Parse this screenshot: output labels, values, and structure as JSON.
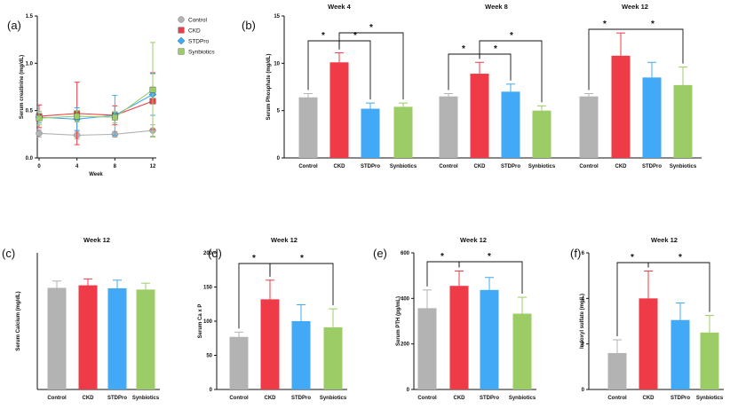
{
  "chart_data": [
    {
      "id": "a",
      "type": "line",
      "panel_label": "(a)",
      "title": "",
      "xlabel": "Week",
      "ylabel": "Serum creatinine (mg/dL)",
      "x": [
        0,
        4,
        8,
        12
      ],
      "xticks": [
        "0",
        "4",
        "8",
        "12"
      ],
      "ylim": [
        0.0,
        1.5
      ],
      "yticks": [
        "0.0",
        "0.5",
        "1.0",
        "1.5"
      ],
      "legend": [
        "Control",
        "CKD",
        "STDPro",
        "Synbiotics"
      ],
      "series": [
        {
          "name": "Control",
          "values": [
            0.26,
            0.24,
            0.25,
            0.29
          ],
          "err": [
            0.04,
            0.04,
            0.03,
            0.06
          ],
          "color": "#b3b3b3",
          "marker": "circle"
        },
        {
          "name": "CKD",
          "values": [
            0.44,
            0.47,
            0.45,
            0.6
          ],
          "err": [
            0.12,
            0.33,
            0.1,
            0.3
          ],
          "color": "#ee3b47",
          "marker": "square"
        },
        {
          "name": "STDPro",
          "values": [
            0.43,
            0.41,
            0.45,
            0.67
          ],
          "err": [
            0.06,
            0.12,
            0.21,
            0.22
          ],
          "color": "#41a9f5",
          "marker": "diamond"
        },
        {
          "name": "Synbiotics",
          "values": [
            0.42,
            0.44,
            0.43,
            0.72
          ],
          "err": [
            0.07,
            0.06,
            0.06,
            0.5
          ],
          "color": "#9ccc65",
          "marker": "square"
        }
      ]
    },
    {
      "id": "b",
      "type": "bar",
      "panel_label": "(b)",
      "ylabel": "Serum Phosphate (mg/dL)",
      "ylim": [
        0,
        15
      ],
      "yticks": [
        "0",
        "5",
        "10",
        "15"
      ],
      "groups": [
        {
          "title": "Week 4",
          "categories": [
            "Control",
            "CKD",
            "STDPro",
            "Synbiotics"
          ],
          "values": [
            6.4,
            10.1,
            5.2,
            5.4
          ],
          "err": [
            0.4,
            1.0,
            0.6,
            0.4
          ],
          "sig": [
            {
              "from": 0,
              "to": 1,
              "label": "*"
            },
            {
              "from": 1,
              "to": 2,
              "label": "*"
            },
            {
              "from": 1,
              "to": 3,
              "label": "*"
            }
          ]
        },
        {
          "title": "Week 8",
          "categories": [
            "Control",
            "CKD",
            "STDPro",
            "Synbiotics"
          ],
          "values": [
            6.5,
            8.9,
            7.0,
            5.0
          ],
          "err": [
            0.3,
            1.2,
            0.8,
            0.5
          ],
          "sig": [
            {
              "from": 0,
              "to": 1,
              "label": "*"
            },
            {
              "from": 1,
              "to": 2,
              "label": "*"
            },
            {
              "from": 1,
              "to": 3,
              "label": "*"
            }
          ]
        },
        {
          "title": "Week 12",
          "categories": [
            "Control",
            "CKD",
            "STDPro",
            "Synbiotics"
          ],
          "values": [
            6.5,
            10.8,
            8.5,
            7.7
          ],
          "err": [
            0.3,
            2.4,
            1.6,
            1.9
          ],
          "sig": [
            {
              "from": 0,
              "to": 1,
              "label": "*"
            },
            {
              "from": 1,
              "to": 3,
              "label": "*"
            }
          ]
        }
      ]
    },
    {
      "id": "c",
      "type": "bar",
      "panel_label": "(c)",
      "title": "Week 12",
      "ylabel": "Serum Calcium (mg/dL)",
      "categories": [
        "Control",
        "CKD",
        "STDPro",
        "Synbiotics"
      ],
      "values": [
        11.9,
        12.2,
        11.85,
        11.7
      ],
      "err": [
        0.8,
        0.75,
        0.95,
        0.75
      ],
      "ylim": [
        0,
        16
      ],
      "yticks": [],
      "sig": []
    },
    {
      "id": "d",
      "type": "bar",
      "panel_label": "(d)",
      "title": "Week 12",
      "ylabel": "Serum Ca x P",
      "categories": [
        "Control",
        "CKD",
        "STDPro",
        "Synbiotics"
      ],
      "values": [
        77,
        132,
        100,
        91
      ],
      "err": [
        7,
        28,
        24,
        27
      ],
      "ylim": [
        0,
        200
      ],
      "yticks": [
        "0",
        "50",
        "100",
        "150",
        "200"
      ],
      "sig": [
        {
          "from": 0,
          "to": 1,
          "label": "*"
        },
        {
          "from": 1,
          "to": 3,
          "label": "*"
        }
      ]
    },
    {
      "id": "e",
      "type": "bar",
      "panel_label": "(e)",
      "title": "Week 12",
      "ylabel": "Serum PTH (pg/mL)",
      "categories": [
        "Control",
        "CKD",
        "STDPro",
        "Synbiotics"
      ],
      "values": [
        357,
        455,
        437,
        333
      ],
      "err": [
        80,
        65,
        55,
        72
      ],
      "ylim": [
        0,
        600
      ],
      "yticks": [
        "0",
        "200",
        "400",
        "600"
      ],
      "sig": [
        {
          "from": 0,
          "to": 1,
          "label": "*"
        },
        {
          "from": 1,
          "to": 3,
          "label": "*"
        }
      ]
    },
    {
      "id": "f",
      "type": "bar",
      "panel_label": "(f)",
      "title": "Week 12",
      "ylabel": "Indoxyl sulfate (mg/L)",
      "categories": [
        "Control",
        "CKD",
        "STDPro",
        "Synbiotics"
      ],
      "values": [
        1.6,
        4.0,
        3.05,
        2.5
      ],
      "err": [
        0.58,
        1.2,
        0.75,
        0.75
      ],
      "ylim": [
        0,
        6
      ],
      "yticks": [
        "0",
        "2",
        "4",
        "6"
      ],
      "sig": [
        {
          "from": 0,
          "to": 1,
          "label": "*"
        },
        {
          "from": 1,
          "to": 3,
          "label": "*"
        }
      ]
    }
  ],
  "colors": {
    "Control": "#b3b3b3",
    "CKD": "#ee3b47",
    "STDPro": "#41a9f5",
    "Synbiotics": "#9ccc65",
    "axis": "#111111"
  }
}
